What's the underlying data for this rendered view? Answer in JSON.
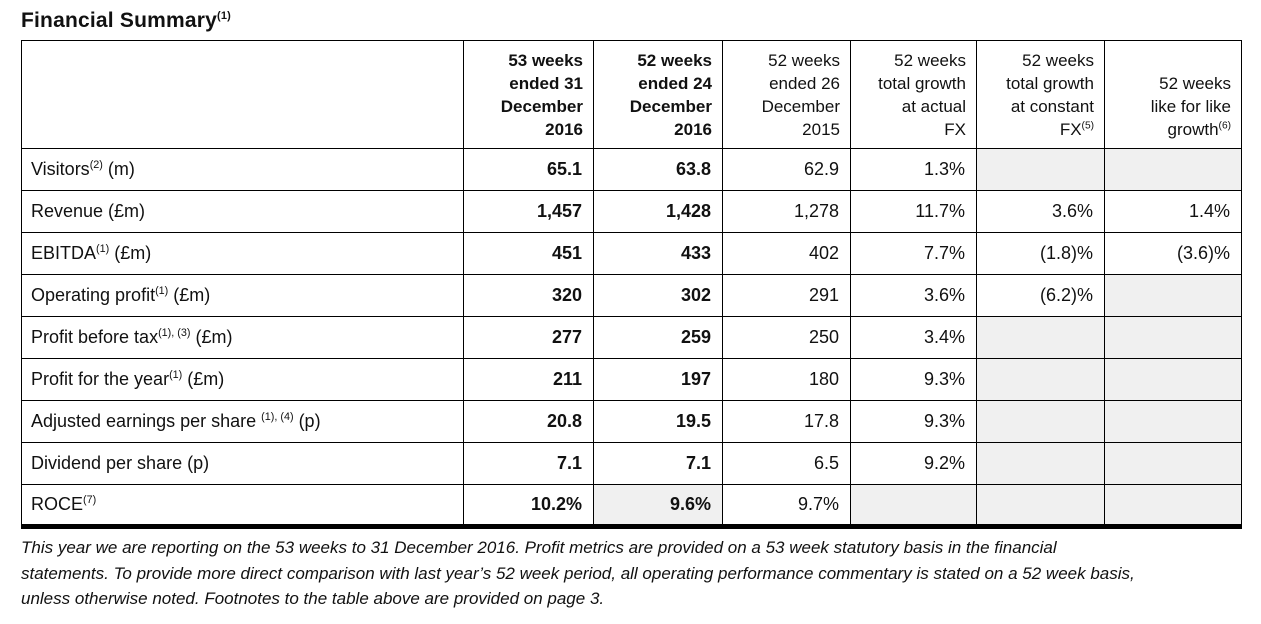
{
  "title": {
    "text": "Financial Summary",
    "footnote": "(1)"
  },
  "colors": {
    "shaded_cell": "#f0f0f0",
    "border": "#000000",
    "text": "#111111",
    "background": "#ffffff"
  },
  "table": {
    "columns": [
      {
        "lines": [
          "53 weeks",
          "ended 31",
          "December",
          "2016"
        ],
        "sup": "",
        "bold": true
      },
      {
        "lines": [
          "52 weeks",
          "ended 24",
          "December",
          "2016"
        ],
        "sup": "",
        "bold": true
      },
      {
        "lines": [
          "52 weeks",
          "ended 26",
          "December",
          "2015"
        ],
        "sup": "",
        "bold": false
      },
      {
        "lines": [
          "52 weeks",
          "total growth",
          "at actual",
          "FX"
        ],
        "sup": "",
        "bold": false
      },
      {
        "lines": [
          "52 weeks",
          "total growth",
          "at constant",
          "FX"
        ],
        "sup": "(5)",
        "bold": false
      },
      {
        "lines": [
          "52 weeks",
          "like for like",
          "growth"
        ],
        "sup": "(6)",
        "bold": false
      }
    ],
    "rows": [
      {
        "label": [
          {
            "t": "Visitors"
          },
          {
            "s": "(2)"
          },
          {
            "t": " (m)"
          }
        ],
        "cells": [
          {
            "v": "65.1"
          },
          {
            "v": "63.8"
          },
          {
            "v": "62.9"
          },
          {
            "v": "1.3%"
          },
          {
            "v": "",
            "sh": true
          },
          {
            "v": "",
            "sh": true
          }
        ]
      },
      {
        "label": [
          {
            "t": "Revenue (£m)"
          }
        ],
        "cells": [
          {
            "v": "1,457"
          },
          {
            "v": "1,428"
          },
          {
            "v": "1,278"
          },
          {
            "v": "11.7%"
          },
          {
            "v": "3.6%"
          },
          {
            "v": "1.4%"
          }
        ]
      },
      {
        "label": [
          {
            "t": "EBITDA"
          },
          {
            "s": "(1)"
          },
          {
            "t": " (£m)"
          }
        ],
        "cells": [
          {
            "v": "451"
          },
          {
            "v": "433"
          },
          {
            "v": "402"
          },
          {
            "v": "7.7%"
          },
          {
            "v": "(1.8)%"
          },
          {
            "v": "(3.6)%"
          }
        ]
      },
      {
        "label": [
          {
            "t": "Operating profit"
          },
          {
            "s": "(1)"
          },
          {
            "t": " (£m)"
          }
        ],
        "cells": [
          {
            "v": "320"
          },
          {
            "v": "302"
          },
          {
            "v": "291"
          },
          {
            "v": "3.6%"
          },
          {
            "v": "(6.2)%"
          },
          {
            "v": "",
            "sh": true
          }
        ]
      },
      {
        "label": [
          {
            "t": "Profit before tax"
          },
          {
            "s": "(1), (3)"
          },
          {
            "t": " (£m)"
          }
        ],
        "cells": [
          {
            "v": "277"
          },
          {
            "v": "259"
          },
          {
            "v": "250"
          },
          {
            "v": "3.4%"
          },
          {
            "v": "",
            "sh": true
          },
          {
            "v": "",
            "sh": true
          }
        ]
      },
      {
        "label": [
          {
            "t": "Profit for the year"
          },
          {
            "s": "(1)"
          },
          {
            "t": " (£m)"
          }
        ],
        "cells": [
          {
            "v": "211"
          },
          {
            "v": "197"
          },
          {
            "v": "180"
          },
          {
            "v": "9.3%"
          },
          {
            "v": "",
            "sh": true
          },
          {
            "v": "",
            "sh": true
          }
        ]
      },
      {
        "label": [
          {
            "t": "Adjusted earnings per share "
          },
          {
            "s": "(1), (4)"
          },
          {
            "t": "  (p)"
          }
        ],
        "cells": [
          {
            "v": "20.8"
          },
          {
            "v": "19.5"
          },
          {
            "v": "17.8"
          },
          {
            "v": "9.3%"
          },
          {
            "v": "",
            "sh": true
          },
          {
            "v": "",
            "sh": true
          }
        ]
      },
      {
        "label": [
          {
            "t": "Dividend per share (p)"
          }
        ],
        "cells": [
          {
            "v": "7.1"
          },
          {
            "v": "7.1"
          },
          {
            "v": "6.5"
          },
          {
            "v": "9.2%"
          },
          {
            "v": "",
            "sh": true
          },
          {
            "v": "",
            "sh": true
          }
        ]
      },
      {
        "label": [
          {
            "t": "ROCE"
          },
          {
            "s": "(7)"
          }
        ],
        "cells": [
          {
            "v": "10.2%"
          },
          {
            "v": "9.6%",
            "sh": true
          },
          {
            "v": "9.7%"
          },
          {
            "v": "",
            "sh": true
          },
          {
            "v": "",
            "sh": true
          },
          {
            "v": "",
            "sh": true
          }
        ]
      }
    ]
  },
  "footer": {
    "lines": [
      "This year we are reporting on the 53 weeks to 31 December 2016. Profit metrics are provided on a 53 week statutory basis in the financial",
      "statements. To provide more direct comparison with last year’s 52 week period, all operating performance commentary is stated on a 52 week basis,",
      "unless otherwise noted. Footnotes to the table above are provided on page 3."
    ]
  }
}
